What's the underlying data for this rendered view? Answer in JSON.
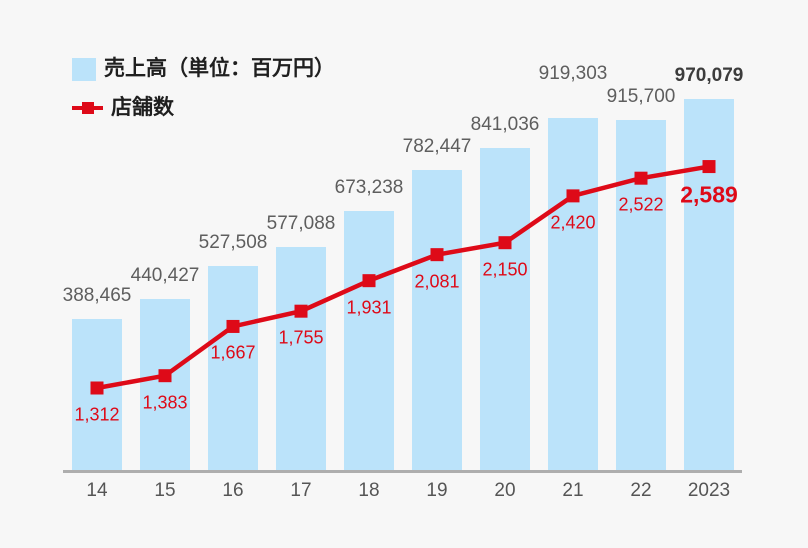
{
  "legend": {
    "sales_label": "売上高（単位：百万円）",
    "stores_label": "店舗数"
  },
  "colors": {
    "background": "#F7F7F7",
    "bar": "#BBE3FA",
    "line": "#DE0A18",
    "bar_label": "#5E5E5E",
    "bar_label_emphasis": "#3C3C3C",
    "store_label": "#DE0A18",
    "axis_line": "#AEAEAE",
    "x_label": "#555555",
    "legend_text": "#1F1F1F"
  },
  "chart_data": {
    "type": "bar+line",
    "categories": [
      "14",
      "15",
      "16",
      "17",
      "18",
      "19",
      "20",
      "21",
      "22",
      "2023"
    ],
    "series": [
      {
        "name": "売上高（単位：百万円）",
        "type": "bar",
        "values": [
          388465,
          440427,
          527508,
          577088,
          673238,
          782447,
          841036,
          919303,
          915700,
          970079
        ],
        "labels": [
          "388,465",
          "440,427",
          "527,508",
          "577,088",
          "673,238",
          "782,447",
          "841,036",
          "919,303",
          "915,700",
          "970,079"
        ]
      },
      {
        "name": "店舗数",
        "type": "line",
        "values": [
          1312,
          1383,
          1667,
          1755,
          1931,
          2081,
          2150,
          2420,
          2522,
          2589
        ],
        "labels": [
          "1,312",
          "1,383",
          "1,667",
          "1,755",
          "1,931",
          "2,081",
          "2,150",
          "2,420",
          "2,522",
          "2,589"
        ]
      }
    ],
    "emphasis_last_point": true,
    "legend_position": "top-left",
    "grid": false,
    "y_axis_shown": false,
    "bar_axis_range": [
      0,
      1000000
    ],
    "line_axis_range": [
      1312,
      2589
    ]
  }
}
